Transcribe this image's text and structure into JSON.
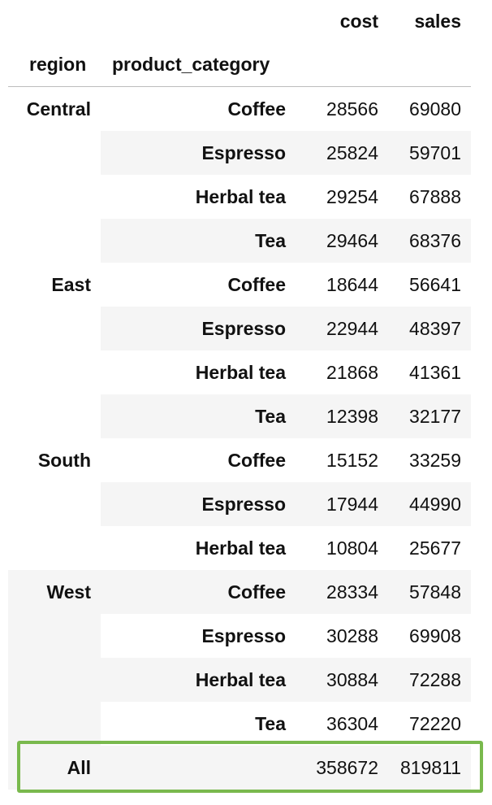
{
  "table": {
    "columns": [
      "cost",
      "sales"
    ],
    "index_names": [
      "region",
      "product_category"
    ],
    "groups": [
      {
        "region": "Central",
        "rows": [
          {
            "product_category": "Coffee",
            "cost": "28566",
            "sales": "69080"
          },
          {
            "product_category": "Espresso",
            "cost": "25824",
            "sales": "59701"
          },
          {
            "product_category": "Herbal tea",
            "cost": "29254",
            "sales": "67888"
          },
          {
            "product_category": "Tea",
            "cost": "29464",
            "sales": "68376"
          }
        ]
      },
      {
        "region": "East",
        "rows": [
          {
            "product_category": "Coffee",
            "cost": "18644",
            "sales": "56641"
          },
          {
            "product_category": "Espresso",
            "cost": "22944",
            "sales": "48397"
          },
          {
            "product_category": "Herbal tea",
            "cost": "21868",
            "sales": "41361"
          },
          {
            "product_category": "Tea",
            "cost": "12398",
            "sales": "32177"
          }
        ]
      },
      {
        "region": "South",
        "rows": [
          {
            "product_category": "Coffee",
            "cost": "15152",
            "sales": "33259"
          },
          {
            "product_category": "Espresso",
            "cost": "17944",
            "sales": "44990"
          },
          {
            "product_category": "Herbal tea",
            "cost": "10804",
            "sales": "25677"
          }
        ]
      },
      {
        "region": "West",
        "rows": [
          {
            "product_category": "Coffee",
            "cost": "28334",
            "sales": "57848"
          },
          {
            "product_category": "Espresso",
            "cost": "30288",
            "sales": "69908"
          },
          {
            "product_category": "Herbal tea",
            "cost": "30884",
            "sales": "72288"
          },
          {
            "product_category": "Tea",
            "cost": "36304",
            "sales": "72220"
          }
        ]
      }
    ],
    "total": {
      "label": "All",
      "product_category": "",
      "cost": "358672",
      "sales": "819811"
    }
  },
  "highlight": {
    "color": "#79b94d",
    "target": "total-row"
  }
}
